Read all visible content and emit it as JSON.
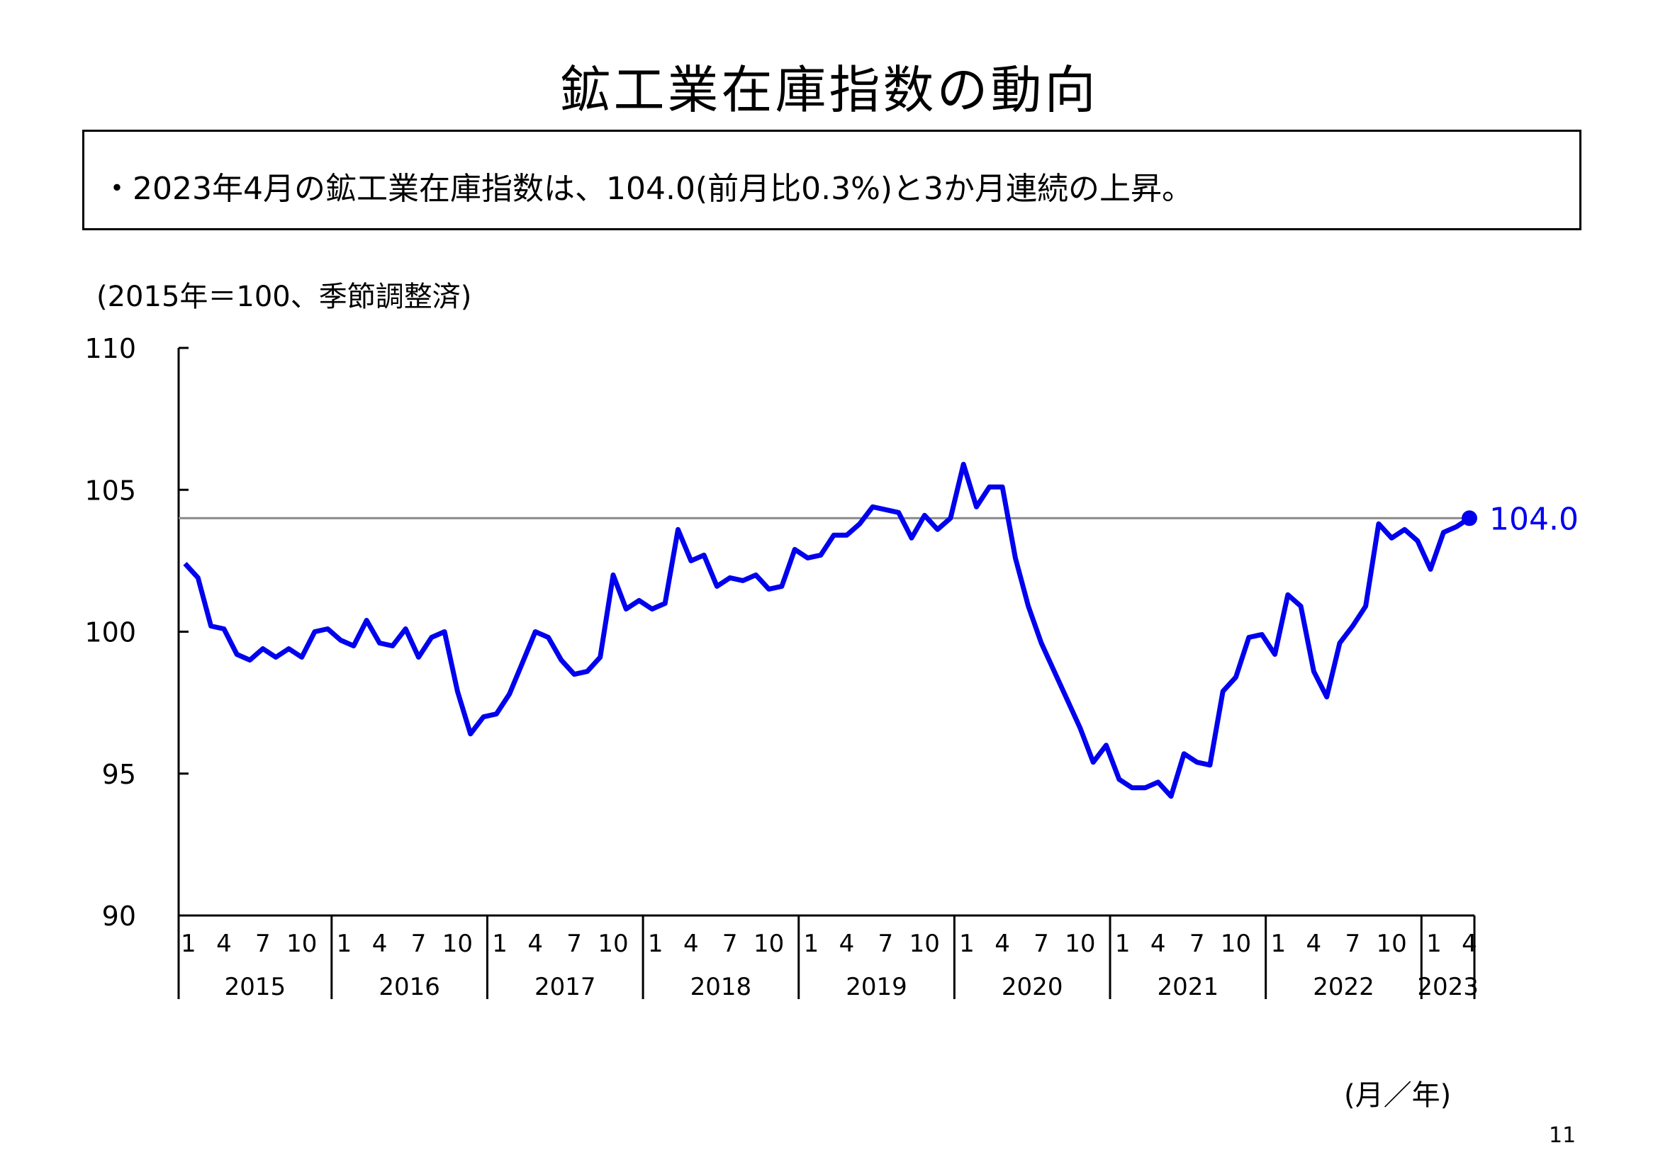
{
  "page": {
    "title": "鉱工業在庫指数の動向",
    "summary": "・2023年4月の鉱工業在庫指数は、104.0(前月比0.3%)と3か月連続の上昇。",
    "unit_note": "(2015年＝100、季節調整済)",
    "x_unit": "(月／年)",
    "page_number": "11"
  },
  "chart_data": {
    "type": "line",
    "title": "",
    "xlabel": "(月／年)",
    "ylabel": "(2015年＝100、季節調整済)",
    "ylim": [
      90,
      110
    ],
    "yticks": [
      90,
      95,
      100,
      105,
      110
    ],
    "reference_line": 104.0,
    "end_label": "104.0",
    "month_tick_labels": [
      "1",
      "4",
      "7",
      "10"
    ],
    "years": [
      "2015",
      "2016",
      "2017",
      "2018",
      "2019",
      "2020",
      "2021",
      "2022",
      "2023"
    ],
    "last_year_month_labels": [
      "1",
      "4"
    ],
    "start": "2015-01",
    "end": "2023-04",
    "series": [
      {
        "name": "",
        "color": "#0000ee",
        "values": [
          102.4,
          101.9,
          100.2,
          100.1,
          99.2,
          99.0,
          99.4,
          99.1,
          99.4,
          99.1,
          100.0,
          100.1,
          99.7,
          99.5,
          100.4,
          99.6,
          99.5,
          100.1,
          99.1,
          99.8,
          100.0,
          97.9,
          96.4,
          97.0,
          97.1,
          97.8,
          98.9,
          100.0,
          99.8,
          99.0,
          98.5,
          98.6,
          99.1,
          102.0,
          100.8,
          101.1,
          100.8,
          101.0,
          103.6,
          102.5,
          102.7,
          101.6,
          101.9,
          101.8,
          102.0,
          101.5,
          101.6,
          102.9,
          102.6,
          102.7,
          103.4,
          103.4,
          103.8,
          104.4,
          104.3,
          104.2,
          103.3,
          104.1,
          103.6,
          104.0,
          105.9,
          104.4,
          105.1,
          105.1,
          102.6,
          100.9,
          99.6,
          98.6,
          97.6,
          96.6,
          95.4,
          96.0,
          94.8,
          94.5,
          94.5,
          94.7,
          94.2,
          95.7,
          95.4,
          95.3,
          97.9,
          98.4,
          99.8,
          99.9,
          99.2,
          101.3,
          100.9,
          98.6,
          97.7,
          99.6,
          100.2,
          100.9,
          103.8,
          103.3,
          103.6,
          103.2,
          102.2,
          103.5,
          103.7,
          104.0
        ]
      }
    ],
    "grid": false,
    "legend": "none"
  }
}
